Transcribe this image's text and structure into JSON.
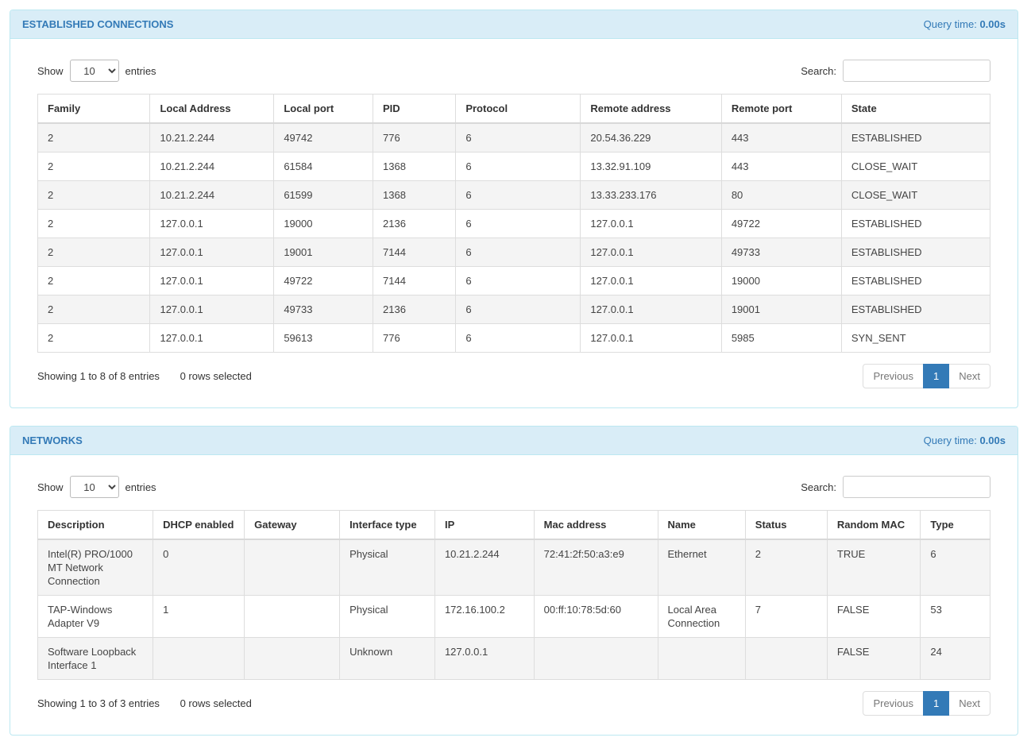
{
  "colors": {
    "accent_blue": "#337ab7",
    "panel_border": "#bce8f1",
    "panel_heading_bg": "#d9edf7",
    "stripe_row_bg": "#f4f4f4",
    "active_page_bg": "#337ab7"
  },
  "panels": [
    {
      "title": "ESTABLISHED CONNECTIONS",
      "query_time_label": "Query time:",
      "query_time_value": "0.00s",
      "show_label": "Show",
      "entries_label": "entries",
      "page_length": "10",
      "search_label": "Search:",
      "search_value": "",
      "columns": [
        "Family",
        "Local Address",
        "Local port",
        "PID",
        "Protocol",
        "Remote address",
        "Remote port",
        "State"
      ],
      "rows": [
        [
          "2",
          "10.21.2.244",
          "49742",
          "776",
          "6",
          "20.54.36.229",
          "443",
          "ESTABLISHED"
        ],
        [
          "2",
          "10.21.2.244",
          "61584",
          "1368",
          "6",
          "13.32.91.109",
          "443",
          "CLOSE_WAIT"
        ],
        [
          "2",
          "10.21.2.244",
          "61599",
          "1368",
          "6",
          "13.33.233.176",
          "80",
          "CLOSE_WAIT"
        ],
        [
          "2",
          "127.0.0.1",
          "19000",
          "2136",
          "6",
          "127.0.0.1",
          "49722",
          "ESTABLISHED"
        ],
        [
          "2",
          "127.0.0.1",
          "19001",
          "7144",
          "6",
          "127.0.0.1",
          "49733",
          "ESTABLISHED"
        ],
        [
          "2",
          "127.0.0.1",
          "49722",
          "7144",
          "6",
          "127.0.0.1",
          "19000",
          "ESTABLISHED"
        ],
        [
          "2",
          "127.0.0.1",
          "49733",
          "2136",
          "6",
          "127.0.0.1",
          "19001",
          "ESTABLISHED"
        ],
        [
          "2",
          "127.0.0.1",
          "59613",
          "776",
          "6",
          "127.0.0.1",
          "5985",
          "SYN_SENT"
        ]
      ],
      "info": "Showing 1 to 8 of 8 entries",
      "rows_selected": "0 rows selected",
      "pagination": {
        "previous": "Previous",
        "page": "1",
        "next": "Next"
      }
    },
    {
      "title": "NETWORKS",
      "query_time_label": "Query time:",
      "query_time_value": "0.00s",
      "show_label": "Show",
      "entries_label": "entries",
      "page_length": "10",
      "search_label": "Search:",
      "search_value": "",
      "columns": [
        "Description",
        "DHCP enabled",
        "Gateway",
        "Interface type",
        "IP",
        "Mac address",
        "Name",
        "Status",
        "Random MAC",
        "Type"
      ],
      "rows": [
        [
          "Intel(R) PRO/1000 MT Network Connection",
          "0",
          "",
          "Physical",
          "10.21.2.244",
          "72:41:2f:50:a3:e9",
          "Ethernet",
          "2",
          "TRUE",
          "6"
        ],
        [
          "TAP-Windows Adapter V9",
          "1",
          "",
          "Physical",
          "172.16.100.2",
          "00:ff:10:78:5d:60",
          "Local Area Connection",
          "7",
          "FALSE",
          "53"
        ],
        [
          "Software Loopback Interface 1",
          "",
          "",
          "Unknown",
          "127.0.0.1",
          "",
          "",
          "",
          "FALSE",
          "24"
        ]
      ],
      "info": "Showing 1 to 3 of 3 entries",
      "rows_selected": "0 rows selected",
      "pagination": {
        "previous": "Previous",
        "page": "1",
        "next": "Next"
      }
    }
  ]
}
